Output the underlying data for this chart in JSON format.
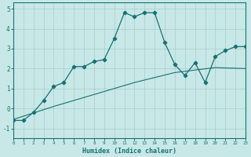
{
  "xlabel": "Humidex (Indice chaleur)",
  "bg_color": "#c8e8e8",
  "line_color": "#1a7070",
  "grid_color": "#a8cccc",
  "xlim": [
    0,
    23
  ],
  "ylim": [
    -1.5,
    5.3
  ],
  "yticks": [
    -1,
    0,
    1,
    2,
    3,
    4,
    5
  ],
  "xticks": [
    0,
    1,
    2,
    3,
    4,
    5,
    6,
    7,
    8,
    9,
    10,
    11,
    12,
    13,
    14,
    15,
    16,
    17,
    18,
    19,
    20,
    21,
    22,
    23
  ],
  "main_x": [
    0,
    1,
    2,
    3,
    4,
    5,
    6,
    7,
    8,
    9,
    10,
    11,
    12,
    13,
    14,
    15,
    16,
    17,
    18,
    19,
    20,
    21,
    22,
    23
  ],
  "main_y": [
    -0.6,
    -0.6,
    -0.2,
    0.4,
    1.1,
    1.3,
    2.1,
    2.1,
    2.35,
    2.45,
    3.5,
    4.8,
    4.6,
    4.8,
    4.8,
    3.3,
    2.2,
    1.65,
    2.3,
    1.3,
    2.6,
    2.9,
    3.1,
    3.1
  ],
  "smooth_x": [
    0,
    4,
    8,
    12,
    16,
    20,
    23
  ],
  "smooth_y": [
    -0.55,
    0.1,
    0.7,
    1.3,
    1.8,
    2.05,
    2.0
  ]
}
